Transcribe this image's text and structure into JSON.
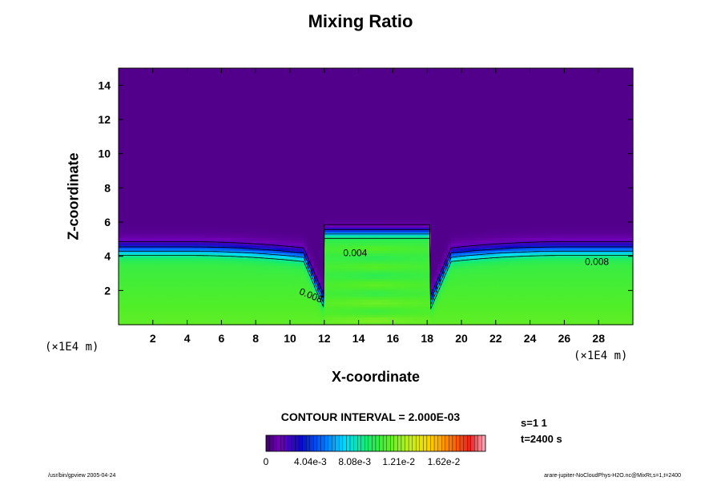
{
  "chart_data": {
    "type": "heatmap",
    "title": "Mixing Ratio",
    "xlabel": "X-coordinate",
    "ylabel": "Z-coordinate",
    "x_unit": "(×1E4 m)",
    "z_unit": "(×1E4 m)",
    "xlim": [
      0,
      30
    ],
    "ylim": [
      0,
      15
    ],
    "x_ticks": [
      2,
      4,
      6,
      8,
      10,
      12,
      14,
      16,
      18,
      20,
      22,
      24,
      26,
      28
    ],
    "y_ticks": [
      2,
      4,
      6,
      8,
      10,
      12,
      14
    ],
    "colorbar": {
      "min": 0,
      "max": 0.02,
      "ticks": [
        0,
        0.00404,
        0.00808,
        0.0121,
        0.0162
      ],
      "tick_labels": [
        "0",
        "4.04e-3",
        "8.08e-3",
        "1.21e-2",
        "1.62e-2"
      ],
      "colormap": "rainbow"
    },
    "contour_interval": "CONTOUR INTERVAL = 2.000E-03",
    "contour_labels": [
      {
        "text": "0.004",
        "x": 13.1,
        "z": 4.0
      },
      {
        "text": "0.008",
        "x": 10.5,
        "z": 1.8
      },
      {
        "text": "0.008",
        "x": 27.2,
        "z": 3.5
      }
    ],
    "field_description": {
      "upper_value": 0.0005,
      "lower_value": 0.0105,
      "interface_height_edges": 4.4,
      "interface_height_near_center": 3.9,
      "dome_x_range": [
        12.0,
        18.2
      ],
      "dome_top": 5.4
    }
  },
  "subtitle_info": {
    "s": "s=1 1",
    "t": "t=2400 s"
  },
  "footer": {
    "left": "/usr/bin/gpview 2005-04-24",
    "right": "arare-jupiter-NoCloudPhys-H2O.nc@MixRt,s=1,t=2400"
  }
}
